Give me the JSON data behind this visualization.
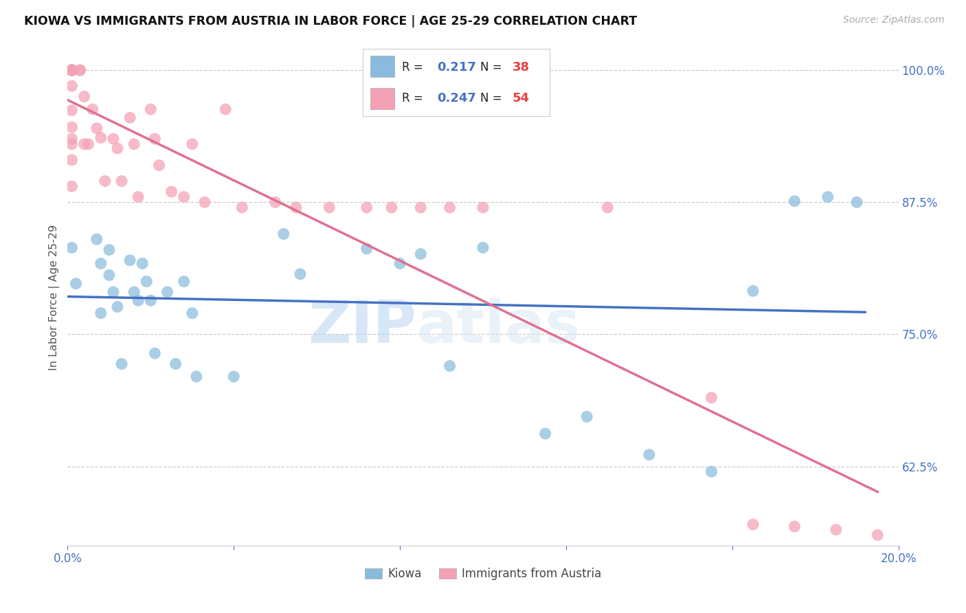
{
  "title": "KIOWA VS IMMIGRANTS FROM AUSTRIA IN LABOR FORCE | AGE 25-29 CORRELATION CHART",
  "source": "Source: ZipAtlas.com",
  "ylabel": "In Labor Force | Age 25-29",
  "x_min": 0.0,
  "x_max": 0.2,
  "y_min": 0.55,
  "y_max": 1.02,
  "y_ticks": [
    0.625,
    0.75,
    0.875,
    1.0
  ],
  "x_ticks": [
    0.0,
    0.04,
    0.08,
    0.12,
    0.16,
    0.2
  ],
  "color_blue": "#88bbdd",
  "color_pink": "#f4a0b5",
  "line_blue": "#4472c4",
  "line_pink": "#e07090",
  "watermark_zip": "ZIP",
  "watermark_atlas": "atlas",
  "legend_r1": "0.217",
  "legend_n1": "38",
  "legend_r2": "0.247",
  "legend_n2": "54",
  "kiowa_x": [
    0.001,
    0.002,
    0.007,
    0.008,
    0.008,
    0.01,
    0.01,
    0.011,
    0.012,
    0.013,
    0.015,
    0.016,
    0.017,
    0.018,
    0.019,
    0.02,
    0.021,
    0.024,
    0.026,
    0.028,
    0.03,
    0.031,
    0.04,
    0.052,
    0.056,
    0.072,
    0.08,
    0.085,
    0.092,
    0.1,
    0.115,
    0.125,
    0.14,
    0.155,
    0.165,
    0.175,
    0.183,
    0.19
  ],
  "kiowa_y": [
    0.832,
    0.798,
    0.84,
    0.817,
    0.77,
    0.83,
    0.806,
    0.79,
    0.776,
    0.722,
    0.82,
    0.79,
    0.782,
    0.817,
    0.8,
    0.782,
    0.732,
    0.79,
    0.722,
    0.8,
    0.77,
    0.71,
    0.71,
    0.845,
    0.807,
    0.831,
    0.817,
    0.826,
    0.72,
    0.832,
    0.656,
    0.672,
    0.636,
    0.62,
    0.791,
    0.876,
    0.88,
    0.875
  ],
  "austria_x": [
    0.001,
    0.001,
    0.001,
    0.001,
    0.001,
    0.001,
    0.001,
    0.001,
    0.001,
    0.001,
    0.001,
    0.001,
    0.001,
    0.001,
    0.001,
    0.001,
    0.003,
    0.003,
    0.004,
    0.004,
    0.005,
    0.006,
    0.007,
    0.008,
    0.009,
    0.011,
    0.012,
    0.013,
    0.015,
    0.016,
    0.017,
    0.02,
    0.021,
    0.022,
    0.025,
    0.028,
    0.03,
    0.033,
    0.038,
    0.042,
    0.05,
    0.055,
    0.063,
    0.072,
    0.078,
    0.085,
    0.092,
    0.1,
    0.13,
    0.155,
    0.165,
    0.175,
    0.185,
    0.195
  ],
  "austria_y": [
    1.0,
    1.0,
    1.0,
    1.0,
    1.0,
    1.0,
    1.0,
    1.0,
    1.0,
    0.985,
    0.962,
    0.946,
    0.935,
    0.93,
    0.915,
    0.89,
    1.0,
    1.0,
    0.975,
    0.93,
    0.93,
    0.963,
    0.945,
    0.936,
    0.895,
    0.935,
    0.926,
    0.895,
    0.955,
    0.93,
    0.88,
    0.963,
    0.935,
    0.91,
    0.885,
    0.88,
    0.93,
    0.875,
    0.963,
    0.87,
    0.875,
    0.87,
    0.87,
    0.87,
    0.87,
    0.87,
    0.87,
    0.87,
    0.87,
    0.69,
    0.57,
    0.568,
    0.565,
    0.56
  ]
}
